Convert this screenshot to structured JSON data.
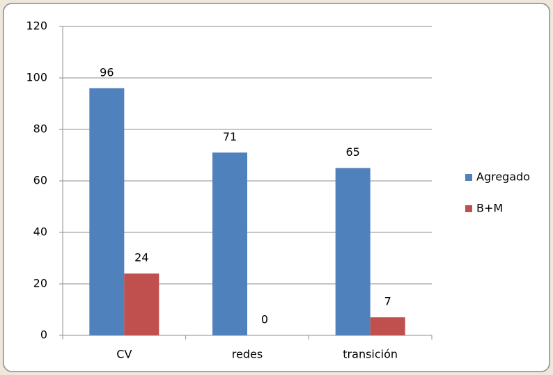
{
  "chart_data": {
    "type": "bar",
    "categories": [
      "CV",
      "redes",
      "transición"
    ],
    "series": [
      {
        "name": "Agregado",
        "color": "#4f81bd",
        "values": [
          96,
          71,
          65
        ]
      },
      {
        "name": "B+M",
        "color": "#c0504d",
        "values": [
          24,
          0,
          7
        ]
      }
    ],
    "ylim": [
      0,
      120
    ],
    "yticks": [
      0,
      20,
      40,
      60,
      80,
      100,
      120
    ],
    "grid": true,
    "legend": "right"
  }
}
